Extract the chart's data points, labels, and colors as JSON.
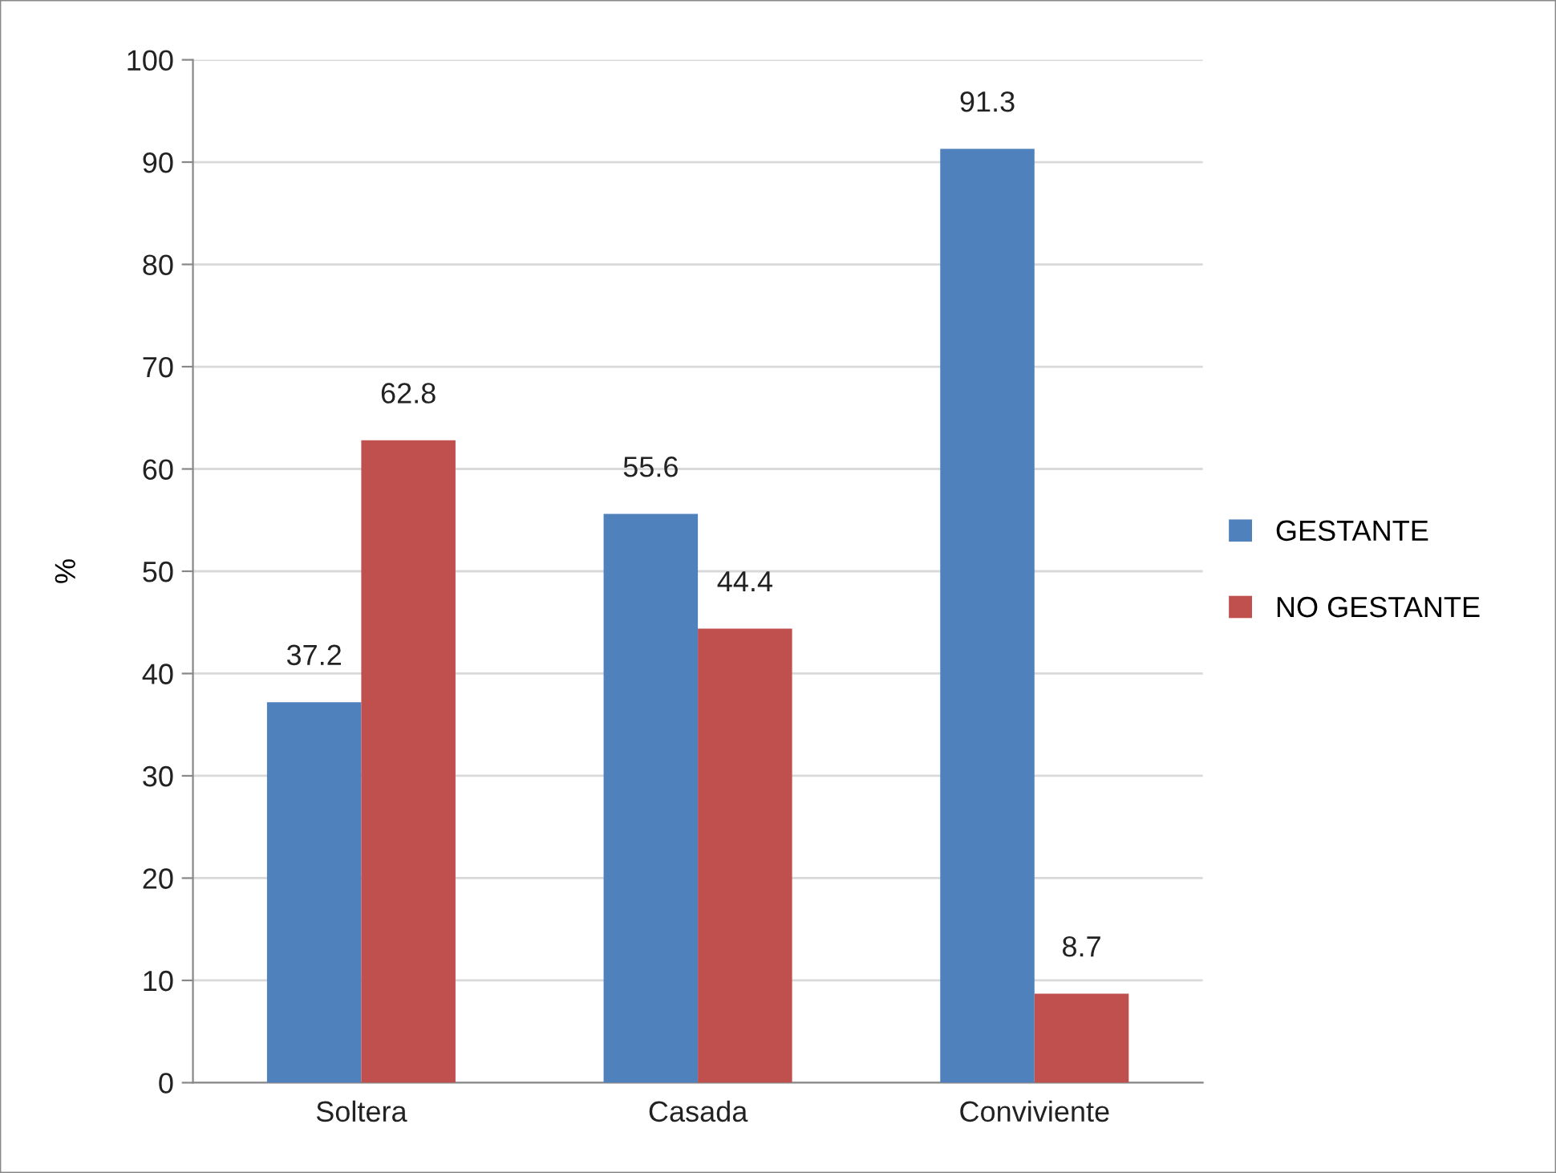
{
  "chart_data": {
    "type": "bar",
    "ylabel": "%",
    "categories": [
      "Soltera",
      "Casada",
      "Conviviente"
    ],
    "series": [
      {
        "name": "GESTANTE",
        "color": "#4f81bd",
        "values": [
          37.2,
          55.6,
          91.3
        ]
      },
      {
        "name": "NO GESTANTE",
        "color": "#c0504d",
        "values": [
          62.8,
          44.4,
          8.7
        ]
      }
    ],
    "ylim": [
      0,
      100
    ],
    "yticks": [
      0,
      10,
      20,
      30,
      40,
      50,
      60,
      70,
      80,
      90,
      100
    ],
    "grid": "y",
    "legend": "right",
    "data_labels": true
  }
}
